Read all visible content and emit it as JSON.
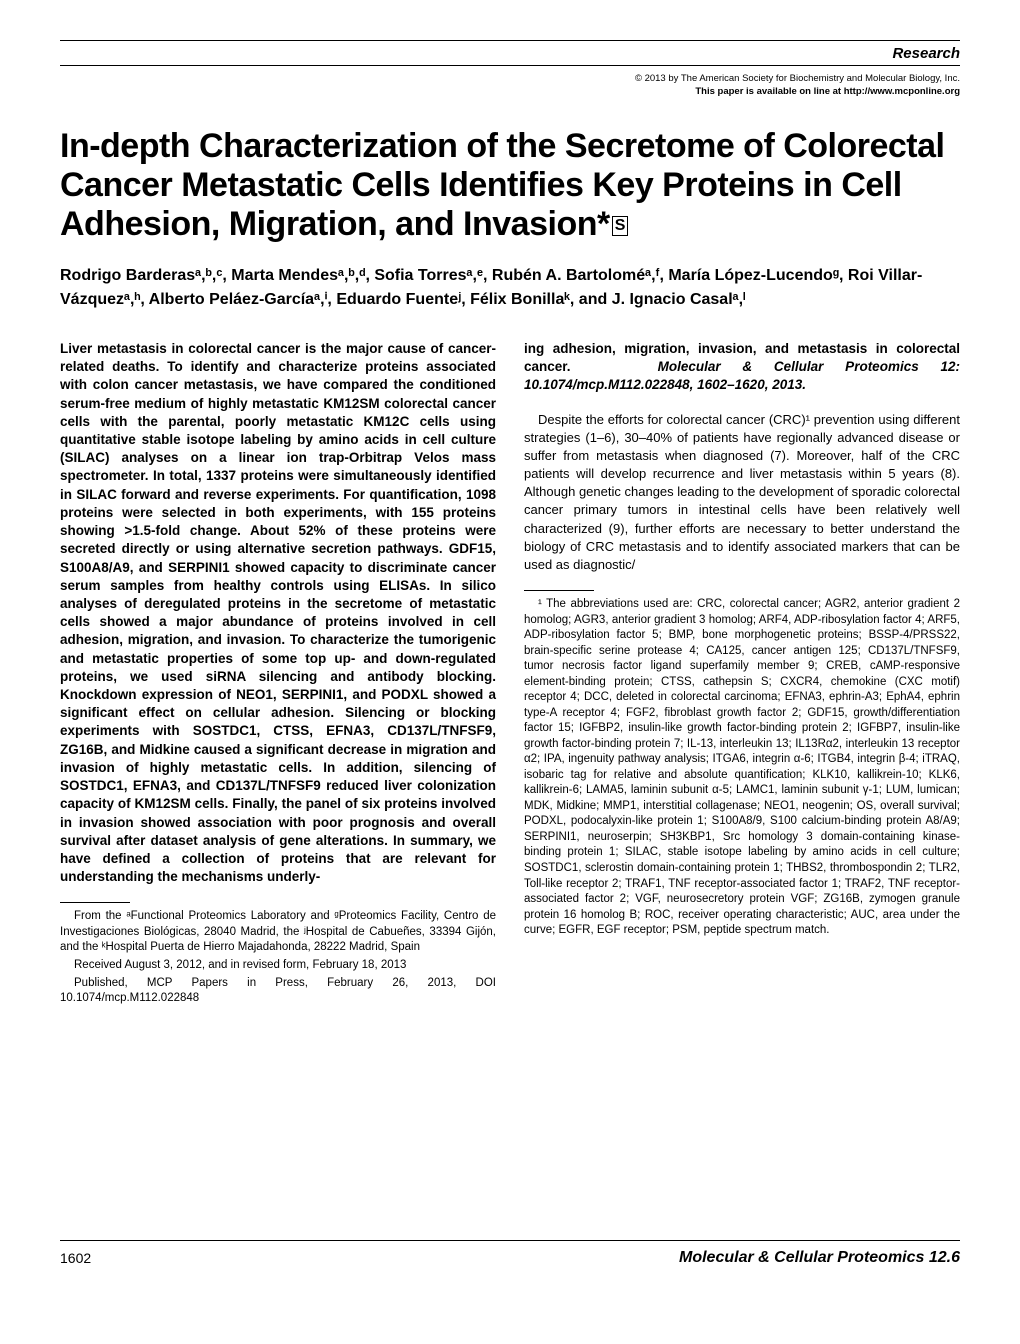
{
  "header": {
    "section_label": "Research",
    "copyright": "© 2013 by The American Society for Biochemistry and Molecular Biology, Inc.",
    "availability": "This paper is available on line at http://www.mcponline.org"
  },
  "title": {
    "text": "In-depth Characterization of the Secretome of Colorectal Cancer Metastatic Cells Identifies Key Proteins in Cell Adhesion, Migration, and Invasion*",
    "supp_symbol": "S"
  },
  "authors": "Rodrigo Barderasᵃ,ᵇ,ᶜ, Marta Mendesᵃ,ᵇ,ᵈ, Sofia Torresᵃ,ᵉ, Rubén A. Bartoloméᵃ,ᶠ, María López-Lucendoᵍ, Roi Villar-Vázquezᵃ,ʰ, Alberto Peláez-Garcíaᵃ,ⁱ, Eduardo Fuenteʲ, Félix Bonillaᵏ, and J. Ignacio Casalᵃ,ˡ",
  "abstract_left": "Liver metastasis in colorectal cancer is the major cause of cancer-related deaths. To identify and characterize proteins associated with colon cancer metastasis, we have compared the conditioned serum-free medium of highly metastatic KM12SM colorectal cancer cells with the parental, poorly metastatic KM12C cells using quantitative stable isotope labeling by amino acids in cell culture (SILAC) analyses on a linear ion trap-Orbitrap Velos mass spectrometer. In total, 1337 proteins were simultaneously identified in SILAC forward and reverse experiments. For quantification, 1098 proteins were selected in both experiments, with 155 proteins showing >1.5-fold change. About 52% of these proteins were secreted directly or using alternative secretion pathways. GDF15, S100A8/A9, and SERPINI1 showed capacity to discriminate cancer serum samples from healthy controls using ELISAs. In silico analyses of deregulated proteins in the secretome of metastatic cells showed a major abundance of proteins involved in cell adhesion, migration, and invasion. To characterize the tumorigenic and metastatic properties of some top up- and down-regulated proteins, we used siRNA silencing and antibody blocking. Knockdown expression of NEO1, SERPINI1, and PODXL showed a significant effect on cellular adhesion. Silencing or blocking experiments with SOSTDC1, CTSS, EFNA3, CD137L/TNFSF9, ZG16B, and Midkine caused a significant decrease in migration and invasion of highly metastatic cells. In addition, silencing of SOSTDC1, EFNA3, and CD137L/TNFSF9 reduced liver colonization capacity of KM12SM cells. Finally, the panel of six proteins involved in invasion showed association with poor prognosis and overall survival after dataset analysis of gene alterations. In summary, we have defined a collection of proteins that are relevant for understanding the mechanisms underly-",
  "abstract_right_1": "ing adhesion, migration, invasion, and metastasis in colorectal cancer.",
  "citation": "Molecular & Cellular Proteomics 12: 10.1074/mcp.M112.022848, 1602–1620, 2013.",
  "body": "Despite the efforts for colorectal cancer (CRC)¹ prevention using different strategies (1–6), 30–40% of patients have regionally advanced disease or suffer from metastasis when diagnosed (7). Moreover, half of the CRC patients will develop recurrence and liver metastasis within 5 years (8). Although genetic changes leading to the development of sporadic colorectal cancer primary tumors in intestinal cells have been relatively well characterized (9), further efforts are necessary to better understand the biology of CRC metastasis and to identify associated markers that can be used as diagnostic/",
  "affiliations": "From the ᵃFunctional Proteomics Laboratory and ᵍProteomics Facility, Centro de Investigaciones Biológicas, 28040 Madrid, the ʲHospital de Cabueñes, 33394 Gijón, and the ᵏHospital Puerta de Hierro Majadahonda, 28222 Madrid, Spain",
  "received": "Received August 3, 2012, and in revised form, February 18, 2013",
  "published": "Published, MCP Papers in Press, February 26, 2013, DOI 10.1074/mcp.M112.022848",
  "footnote": "¹ The abbreviations used are: CRC, colorectal cancer; AGR2, anterior gradient 2 homolog; AGR3, anterior gradient 3 homolog; ARF4, ADP-ribosylation factor 4; ARF5, ADP-ribosylation factor 5; BMP, bone morphogenetic proteins; BSSP-4/PRSS22, brain-specific serine protease 4; CA125, cancer antigen 125; CD137L/TNFSF9, tumor necrosis factor ligand superfamily member 9; CREB, cAMP-responsive element-binding protein; CTSS, cathepsin S; CXCR4, chemokine (CXC motif) receptor 4; DCC, deleted in colorectal carcinoma; EFNA3, ephrin-A3; EphA4, ephrin type-A receptor 4; FGF2, fibroblast growth factor 2; GDF15, growth/differentiation factor 15; IGFBP2, insulin-like growth factor-binding protein 2; IGFBP7, insulin-like growth factor-binding protein 7; IL-13, interleukin 13; IL13Rα2, interleukin 13 receptor α2; IPA, ingenuity pathway analysis; ITGA6, integrin α-6; ITGB4, integrin β-4; iTRAQ, isobaric tag for relative and absolute quantification; KLK10, kallikrein-10; KLK6, kallikrein-6; LAMA5, laminin subunit α-5; LAMC1, laminin subunit γ-1; LUM, lumican; MDK, Midkine; MMP1, interstitial collagenase; NEO1, neogenin; OS, overall survival; PODXL, podocalyxin-like protein 1; S100A8/9, S100 calcium-binding protein A8/A9; SERPINI1, neuroserpin; SH3KBP1, Src homology 3 domain-containing kinase-binding protein 1; SILAC, stable isotope labeling by amino acids in cell culture; SOSTDC1, sclerostin domain-containing protein 1; THBS2, thrombospondin 2; TLR2, Toll-like receptor 2; TRAF1, TNF receptor-associated factor 1; TRAF2, TNF receptor-associated factor 2; VGF, neurosecretory protein VGF; ZG16B, zymogen granule protein 16 homolog B; ROC, receiver operating characteristic; AUC, area under the curve; EGFR, EGF receptor; PSM, peptide spectrum match.",
  "footer": {
    "page": "1602",
    "journal": "Molecular & Cellular Proteomics 12.6"
  }
}
